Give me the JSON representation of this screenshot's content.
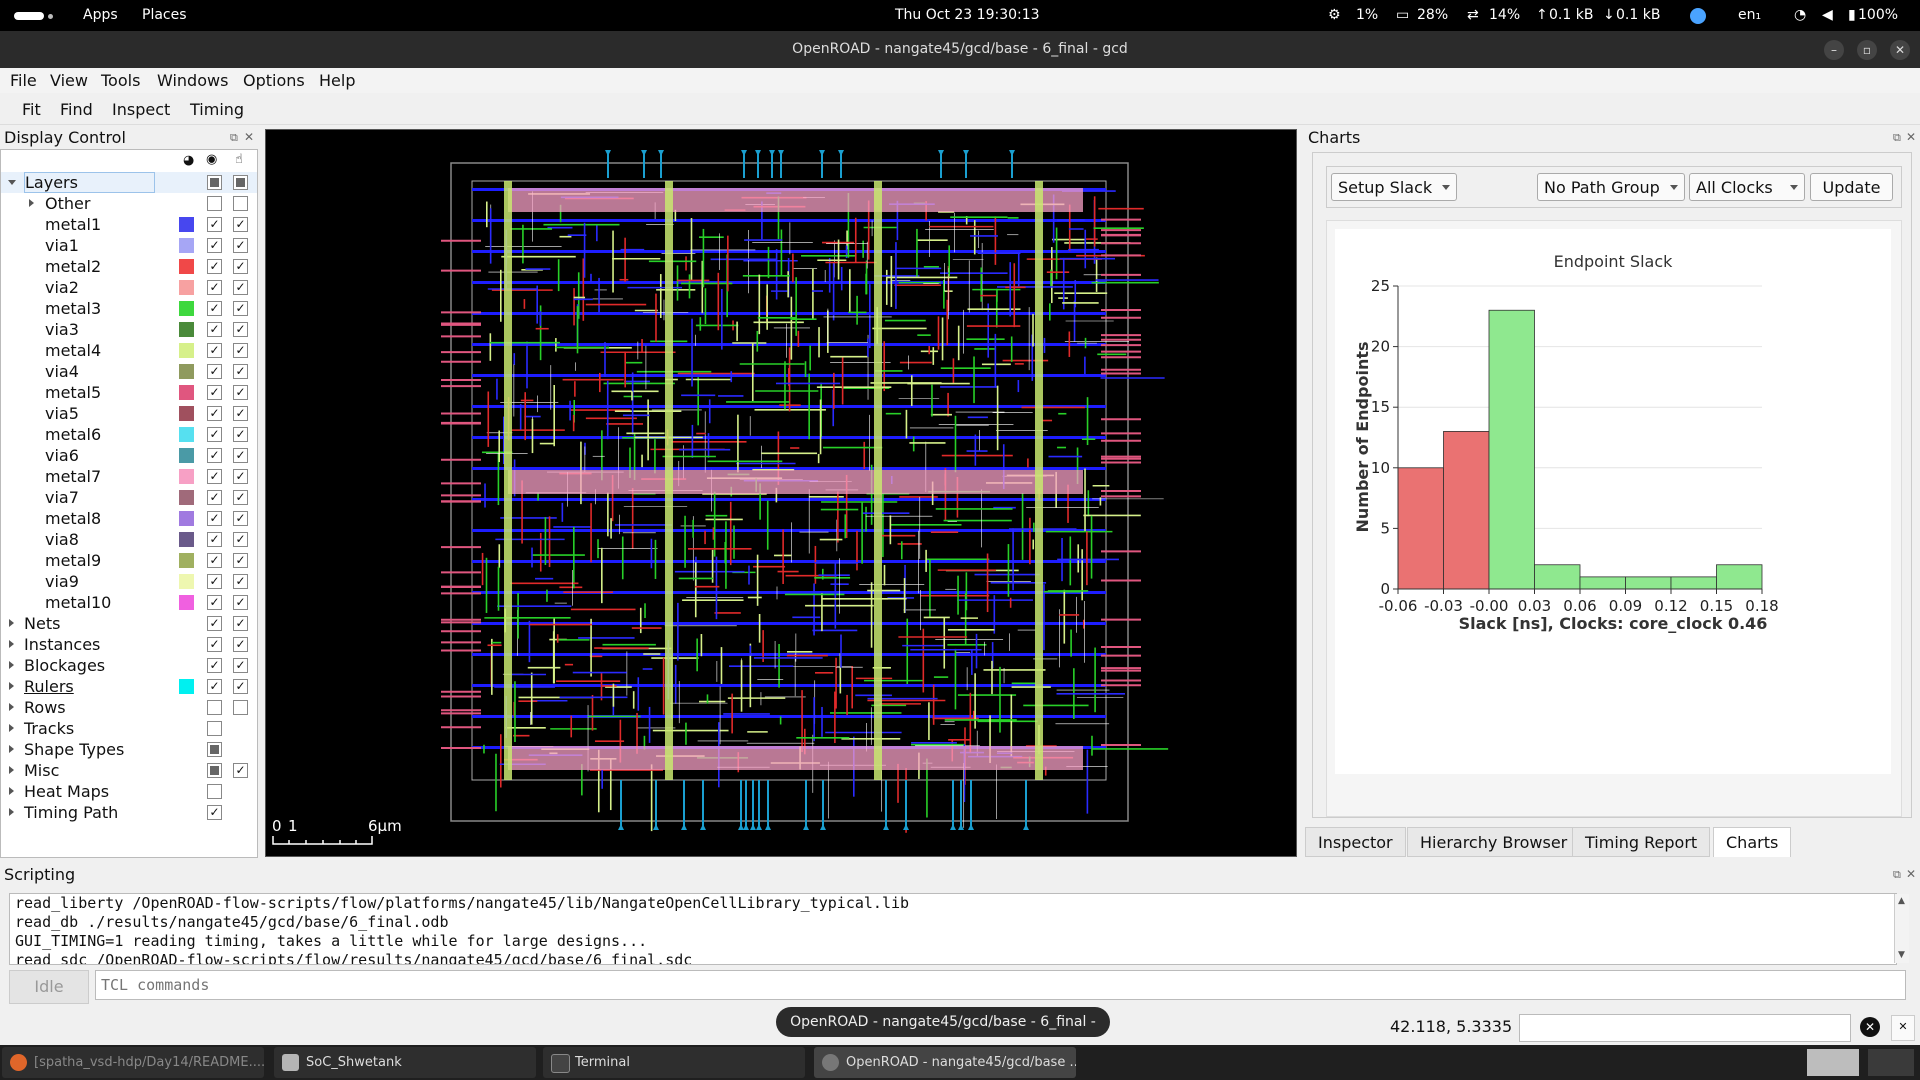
{
  "system_bar": {
    "apps": "Apps",
    "places": "Places",
    "datetime": "Thu Oct 23  19:30:13",
    "cpu": "1%",
    "mem": "28%",
    "swap": "14%",
    "up": "0.1 kB",
    "down": "0.1 kB",
    "lang": "en₁",
    "battery": "100%"
  },
  "window": {
    "title": "OpenROAD - nangate45/gcd/base - 6_final - gcd"
  },
  "menu": {
    "file": "File",
    "view": "View",
    "tools": "Tools",
    "windows": "Windows",
    "options": "Options",
    "help": "Help"
  },
  "toolbar": {
    "fit": "Fit",
    "find": "Find",
    "inspect": "Inspect",
    "timing": "Timing"
  },
  "display_control": {
    "title": "Display Control",
    "layers_label": "Layers",
    "other_label": "Other",
    "layers": [
      {
        "name": "metal1",
        "color": "#4747ef"
      },
      {
        "name": "via1",
        "color": "#a6a6f5"
      },
      {
        "name": "metal2",
        "color": "#f04848"
      },
      {
        "name": "via2",
        "color": "#f7a1a1"
      },
      {
        "name": "metal3",
        "color": "#3ed83e"
      },
      {
        "name": "via3",
        "color": "#4a8a3a"
      },
      {
        "name": "metal4",
        "color": "#d6f08a"
      },
      {
        "name": "via4",
        "color": "#8f9a5e"
      },
      {
        "name": "metal5",
        "color": "#e0567f"
      },
      {
        "name": "via5",
        "color": "#a0505e"
      },
      {
        "name": "metal6",
        "color": "#56e0f0"
      },
      {
        "name": "via6",
        "color": "#4a9aa6"
      },
      {
        "name": "metal7",
        "color": "#f7a0c5"
      },
      {
        "name": "via7",
        "color": "#a06a7a"
      },
      {
        "name": "metal8",
        "color": "#a07ae0"
      },
      {
        "name": "via8",
        "color": "#6a5a8a"
      },
      {
        "name": "metal9",
        "color": "#a0b060"
      },
      {
        "name": "via9",
        "color": "#eef7b0"
      },
      {
        "name": "metal10",
        "color": "#f060e0"
      }
    ],
    "groups": [
      {
        "name": "Nets",
        "c1": "check",
        "c2": "check"
      },
      {
        "name": "Instances",
        "c1": "check",
        "c2": "check"
      },
      {
        "name": "Blockages",
        "c1": "check",
        "c2": "check"
      },
      {
        "name": "Rulers",
        "c1": "check",
        "c2": "check",
        "color": "#00f0f0"
      },
      {
        "name": "Rows",
        "c1": "empty",
        "c2": "empty"
      },
      {
        "name": "Tracks",
        "c1": "empty"
      },
      {
        "name": "Shape Types",
        "c1": "partial"
      },
      {
        "name": "Misc",
        "c1": "partial",
        "c2": "check"
      },
      {
        "name": "Heat Maps",
        "c1": "empty"
      },
      {
        "name": "Timing Path",
        "c1": "check"
      }
    ]
  },
  "scale_bar": {
    "zero": "0",
    "one": "1",
    "max": "6μm"
  },
  "charts": {
    "title": "Charts",
    "slack_select": "Setup Slack",
    "path_group_select": "No Path Group",
    "clock_select": "All Clocks",
    "update_button": "Update",
    "tabs": [
      "Inspector",
      "Hierarchy Browser",
      "Timing Report",
      "Charts"
    ],
    "active_tab": "Charts"
  },
  "chart_data": {
    "type": "bar",
    "title": "Endpoint Slack",
    "xlabel": "Slack [ns], Clocks: core_clock 0.46",
    "ylabel": "Number of Endpoints",
    "x_ticks": [
      "-0.06",
      "-0.03",
      "-0.00",
      "0.03",
      "0.06",
      "0.09",
      "0.12",
      "0.15",
      "0.18"
    ],
    "y_ticks": [
      "0",
      "5",
      "10",
      "15",
      "20",
      "25"
    ],
    "ylim": [
      0,
      25
    ],
    "bin_edges": [
      -0.06,
      -0.03,
      -0.0,
      0.03,
      0.06,
      0.09,
      0.12,
      0.15,
      0.18
    ],
    "values": [
      10,
      13,
      23,
      2,
      1,
      1,
      1,
      2
    ],
    "negative_color": "#ea7272",
    "positive_color": "#8fe88f",
    "grid": true
  },
  "scripting": {
    "title": "Scripting",
    "lines": [
      "read_liberty /OpenROAD-flow-scripts/flow/platforms/nangate45/lib/NangateOpenCellLibrary_typical.lib",
      "read_db ./results/nangate45/gcd/base/6_final.odb",
      "GUI_TIMING=1 reading timing, takes a little while for large designs...",
      "read_sdc /OpenROAD-flow-scripts/flow/results/nangate45/gcd/base/6_final.sdc"
    ],
    "status": "Idle",
    "placeholder": "TCL commands",
    "coords": "42.118, 5.3335",
    "tooltip": "OpenROAD - nangate45/gcd/base - 6_final - gcd"
  },
  "taskbar": {
    "items": [
      "[spatha_vsd-hdp/Day14/README....",
      "SoC_Shwetank",
      "Terminal",
      "OpenROAD - nangate45/gcd/base ..."
    ]
  }
}
